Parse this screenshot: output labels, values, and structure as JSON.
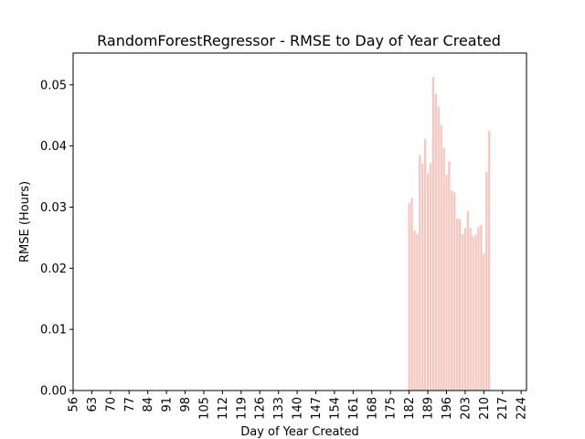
{
  "chart_data": {
    "type": "bar",
    "title": "RandomForestRegressor - RMSE to Day of Year Created",
    "xlabel": "Day of Year Created",
    "ylabel": "RMSE (Hours)",
    "xlim": [
      56,
      226
    ],
    "ylim": [
      0,
      0.0552
    ],
    "x_ticks": [
      56,
      63,
      70,
      77,
      84,
      91,
      98,
      105,
      112,
      119,
      126,
      133,
      140,
      147,
      154,
      161,
      168,
      175,
      182,
      189,
      196,
      203,
      210,
      217,
      224
    ],
    "y_ticks": [
      0.0,
      0.01,
      0.02,
      0.03,
      0.04,
      0.05
    ],
    "y_tick_labels": [
      "0.00",
      "0.01",
      "0.02",
      "0.03",
      "0.04",
      "0.05"
    ],
    "bar_color": "#f4c7c0",
    "grid": false,
    "x": [
      182,
      183,
      184,
      185,
      186,
      187,
      188,
      189,
      190,
      191,
      192,
      193,
      194,
      195,
      196,
      197,
      198,
      199,
      200,
      201,
      202,
      203,
      204,
      205,
      206,
      207,
      208,
      209,
      210,
      211,
      212
    ],
    "values": [
      0.0307,
      0.0315,
      0.0262,
      0.0256,
      0.0385,
      0.0371,
      0.0411,
      0.0355,
      0.0372,
      0.0513,
      0.0485,
      0.0465,
      0.0434,
      0.0397,
      0.0353,
      0.0375,
      0.0327,
      0.0324,
      0.0281,
      0.0281,
      0.0256,
      0.0266,
      0.0294,
      0.0266,
      0.0252,
      0.0255,
      0.0267,
      0.0271,
      0.0224,
      0.0358,
      0.0425
    ]
  }
}
